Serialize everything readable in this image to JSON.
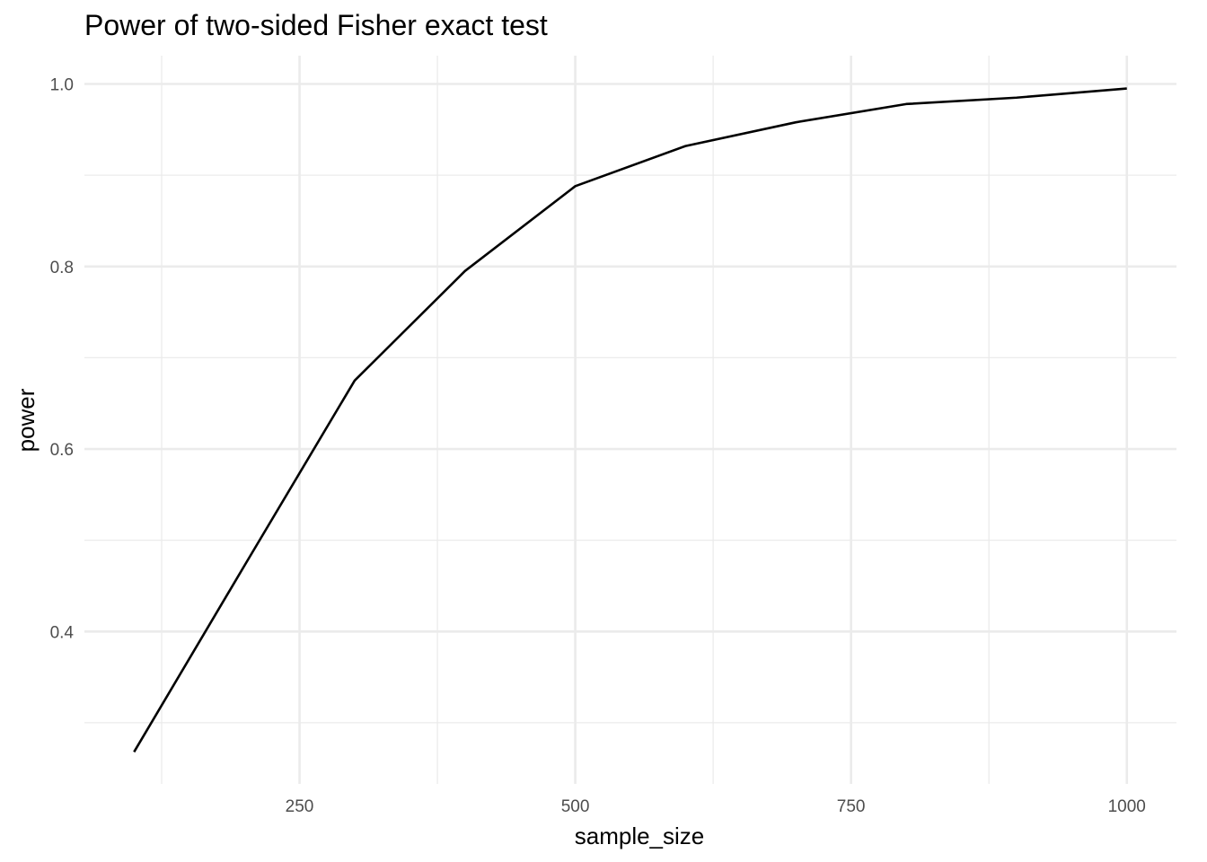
{
  "chart_data": {
    "type": "line",
    "title": "Power of two-sided Fisher exact test",
    "xlabel": "sample_size",
    "ylabel": "power",
    "x": [
      100,
      200,
      300,
      400,
      500,
      600,
      700,
      800,
      900,
      1000
    ],
    "series": [
      {
        "values": [
          0.268,
          0.472,
          0.675,
          0.795,
          0.888,
          0.932,
          0.958,
          0.978,
          0.985,
          0.995
        ],
        "color": "#000000"
      }
    ],
    "xlim": [
      55,
      1045
    ],
    "ylim": [
      0.233,
      1.031
    ],
    "x_ticks": [
      250,
      500,
      750,
      1000
    ],
    "x_tick_labels": [
      "250",
      "500",
      "750",
      "1000"
    ],
    "x_minor_ticks": [
      125,
      375,
      625,
      875
    ],
    "y_ticks": [
      0.4,
      0.6,
      0.8,
      1.0
    ],
    "y_tick_labels": [
      "0.4",
      "0.6",
      "0.8",
      "1.0"
    ],
    "y_minor_ticks": [
      0.3,
      0.5,
      0.7,
      0.9
    ],
    "grid": true,
    "legend": "none",
    "colors": {
      "background": "#ffffff",
      "grid": "#ebebeb",
      "line": "#000000",
      "tick_text": "#4d4d4d",
      "text": "#000000"
    }
  }
}
